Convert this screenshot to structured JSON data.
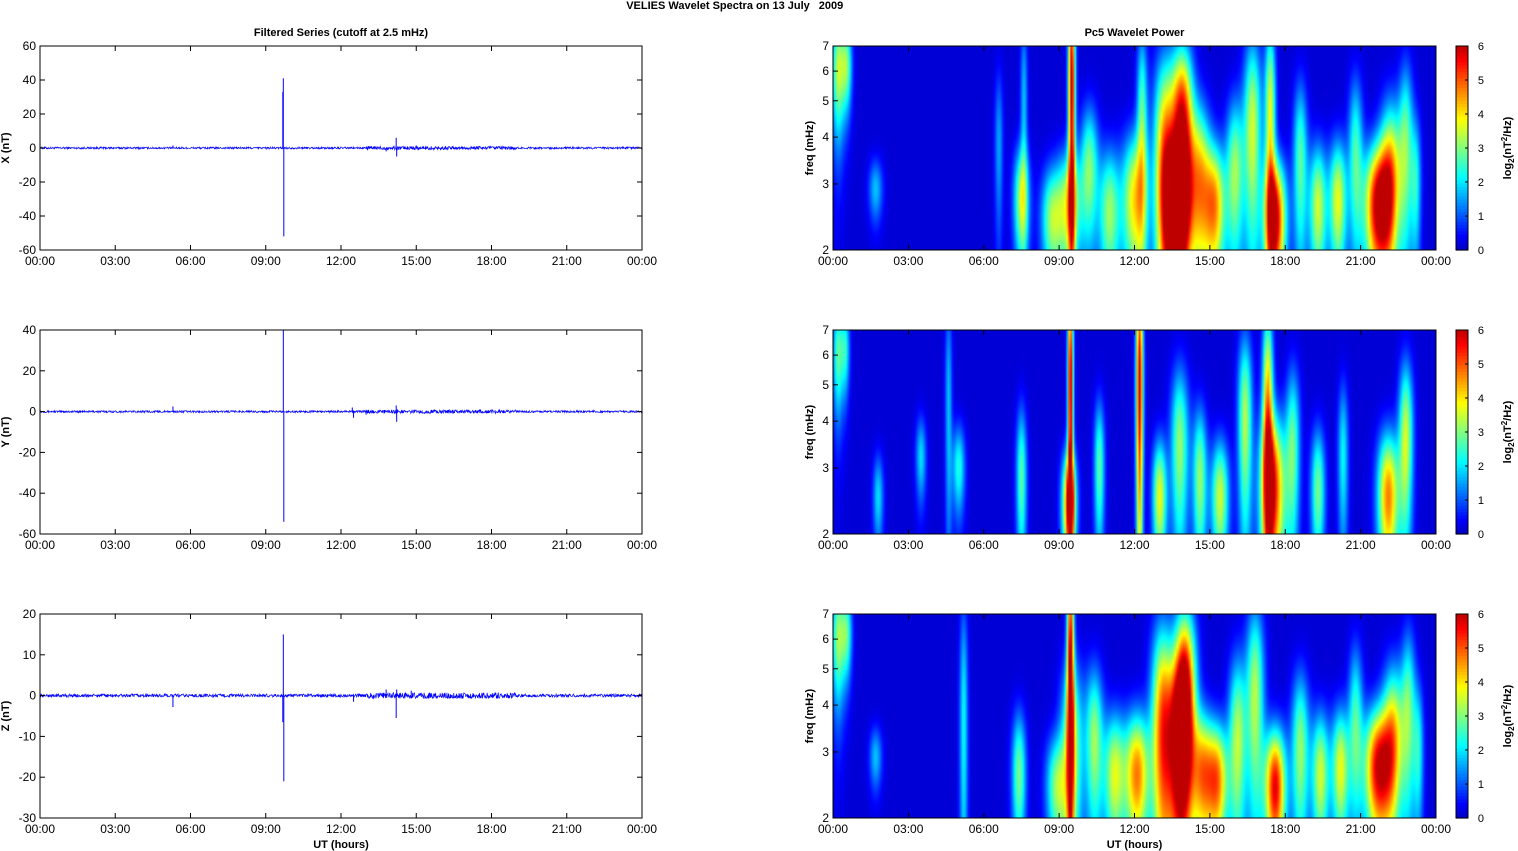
{
  "figure": {
    "title_left": "VELIES Wavelet Spectra on 13 July",
    "title_right": "2009"
  },
  "chart_data": [
    {
      "type": "line",
      "title": "Filtered Series (cutoff at 2.5 mHz)",
      "ylabel": "X (nT)",
      "xlabel": "",
      "xlim": [
        0,
        24
      ],
      "ylim": [
        -60,
        60
      ],
      "yticks": [
        "60",
        "40",
        "20",
        "0",
        "-20",
        "-40",
        "-60"
      ],
      "xticks": [
        "00:00",
        "03:00",
        "06:00",
        "09:00",
        "12:00",
        "15:00",
        "18:00",
        "21:00",
        "00:00"
      ],
      "line_color": "#0000ff",
      "baseline": 0,
      "noise_amplitude": 0.6,
      "spikes": [
        {
          "x": 9.7,
          "y": 41
        },
        {
          "x": 9.72,
          "y": -52
        },
        {
          "x": 9.68,
          "y": 33
        },
        {
          "x": 14.2,
          "y": 6
        },
        {
          "x": 14.22,
          "y": -5
        },
        {
          "x": 5.3,
          "y": 1.5
        },
        {
          "x": 13.8,
          "y": -2
        },
        {
          "x": 15.0,
          "y": 1.5
        },
        {
          "x": 17.5,
          "y": 1.2
        }
      ]
    },
    {
      "type": "line",
      "title": "",
      "ylabel": "Y (nT)",
      "xlabel": "",
      "xlim": [
        0,
        24
      ],
      "ylim": [
        -60,
        40
      ],
      "yticks": [
        "40",
        "20",
        "0",
        "-20",
        "-40",
        "-60"
      ],
      "xticks": [
        "00:00",
        "03:00",
        "06:00",
        "09:00",
        "12:00",
        "15:00",
        "18:00",
        "21:00",
        "00:00"
      ],
      "line_color": "#0000ff",
      "baseline": 0,
      "noise_amplitude": 0.5,
      "spikes": [
        {
          "x": 9.7,
          "y": 40
        },
        {
          "x": 9.72,
          "y": -54
        },
        {
          "x": 5.3,
          "y": 2.5
        },
        {
          "x": 12.5,
          "y": -3
        },
        {
          "x": 12.45,
          "y": 2
        },
        {
          "x": 14.2,
          "y": 3
        },
        {
          "x": 14.22,
          "y": -5
        },
        {
          "x": 13.0,
          "y": -1.5
        }
      ]
    },
    {
      "type": "line",
      "title": "",
      "ylabel": "Z (nT)",
      "xlabel": "UT (hours)",
      "xlim": [
        0,
        24
      ],
      "ylim": [
        -30,
        20
      ],
      "yticks": [
        "20",
        "10",
        "0",
        "-10",
        "-20",
        "-30"
      ],
      "xticks": [
        "00:00",
        "03:00",
        "06:00",
        "09:00",
        "12:00",
        "15:00",
        "18:00",
        "21:00",
        "00:00"
      ],
      "line_color": "#0000ff",
      "baseline": 0,
      "noise_amplitude": 0.4,
      "spikes": [
        {
          "x": 9.7,
          "y": 15
        },
        {
          "x": 9.72,
          "y": -21
        },
        {
          "x": 9.68,
          "y": -6.5
        },
        {
          "x": 5.3,
          "y": -2.8
        },
        {
          "x": 14.2,
          "y": -5.5
        },
        {
          "x": 14.22,
          "y": 1.5
        },
        {
          "x": 12.5,
          "y": -1.5
        },
        {
          "x": 13.8,
          "y": 1.5
        },
        {
          "x": 14.8,
          "y": 1.2
        }
      ]
    },
    {
      "type": "heatmap",
      "title": "Pc5 Wavelet Power",
      "ylabel": "freq (mHz)",
      "xlabel": "",
      "xlim": [
        0,
        24
      ],
      "ylim": [
        2,
        7
      ],
      "ytick_values": [
        2,
        3,
        4,
        5,
        6,
        7
      ],
      "yticks": [
        "2",
        "3",
        "4",
        "5",
        "6",
        "7"
      ],
      "xticks": [
        "00:00",
        "03:00",
        "06:00",
        "09:00",
        "12:00",
        "15:00",
        "18:00",
        "21:00",
        "00:00"
      ],
      "colorbar_label": "log2(nT²/Hz)",
      "colorbar_ticks": [
        "0",
        "1",
        "2",
        "3",
        "4",
        "5",
        "6"
      ],
      "clim": [
        0,
        6
      ],
      "blobs": [
        {
          "t": 0.2,
          "w": 0.18,
          "f": 6.0,
          "fw": 1.6,
          "p": 3.2
        },
        {
          "t": 0.55,
          "w": 0.15,
          "f": 6.2,
          "fw": 1.2,
          "p": 2.6
        },
        {
          "t": 1.7,
          "w": 0.2,
          "f": 2.9,
          "fw": 0.4,
          "p": 1.6
        },
        {
          "t": 6.6,
          "w": 0.12,
          "f": 3.8,
          "fw": 1.4,
          "p": 1.4
        },
        {
          "t": 7.5,
          "w": 0.22,
          "f": 2.7,
          "fw": 0.7,
          "p": 3.2
        },
        {
          "t": 7.6,
          "w": 0.1,
          "f": 5.0,
          "fw": 2.0,
          "p": 1.6
        },
        {
          "t": 8.7,
          "w": 0.3,
          "f": 2.4,
          "fw": 0.6,
          "p": 2.8
        },
        {
          "t": 9.4,
          "w": 0.35,
          "f": 2.6,
          "fw": 0.7,
          "p": 3.4
        },
        {
          "t": 9.5,
          "w": 0.1,
          "f": 5.5,
          "fw": 3.0,
          "p": 6.0
        },
        {
          "t": 10.2,
          "w": 0.25,
          "f": 3.3,
          "fw": 1.0,
          "p": 2.8
        },
        {
          "t": 11.0,
          "w": 0.3,
          "f": 2.5,
          "fw": 0.8,
          "p": 3.0
        },
        {
          "t": 12.0,
          "w": 0.35,
          "f": 2.7,
          "fw": 0.9,
          "p": 3.8
        },
        {
          "t": 12.3,
          "w": 0.15,
          "f": 4.5,
          "fw": 2.0,
          "p": 2.6
        },
        {
          "t": 13.2,
          "w": 0.3,
          "f": 3.3,
          "fw": 2.0,
          "p": 4.6
        },
        {
          "t": 13.7,
          "w": 0.35,
          "f": 2.6,
          "fw": 0.8,
          "p": 5.6
        },
        {
          "t": 13.9,
          "w": 0.3,
          "f": 4.2,
          "fw": 1.8,
          "p": 5.8
        },
        {
          "t": 14.6,
          "w": 0.3,
          "f": 3.0,
          "fw": 1.2,
          "p": 3.8
        },
        {
          "t": 15.2,
          "w": 0.3,
          "f": 2.6,
          "fw": 0.8,
          "p": 4.2
        },
        {
          "t": 16.0,
          "w": 0.25,
          "f": 3.2,
          "fw": 1.2,
          "p": 3.0
        },
        {
          "t": 16.7,
          "w": 0.25,
          "f": 4.2,
          "fw": 2.0,
          "p": 3.4
        },
        {
          "t": 17.6,
          "w": 0.3,
          "f": 2.4,
          "fw": 0.7,
          "p": 5.8
        },
        {
          "t": 17.4,
          "w": 0.15,
          "f": 4.5,
          "fw": 2.2,
          "p": 3.6
        },
        {
          "t": 18.6,
          "w": 0.2,
          "f": 3.4,
          "fw": 1.4,
          "p": 2.6
        },
        {
          "t": 19.3,
          "w": 0.25,
          "f": 2.6,
          "fw": 0.8,
          "p": 3.4
        },
        {
          "t": 20.1,
          "w": 0.25,
          "f": 2.7,
          "fw": 0.8,
          "p": 3.6
        },
        {
          "t": 20.8,
          "w": 0.2,
          "f": 3.6,
          "fw": 1.4,
          "p": 2.4
        },
        {
          "t": 21.7,
          "w": 0.4,
          "f": 2.6,
          "fw": 0.8,
          "p": 5.8
        },
        {
          "t": 22.2,
          "w": 0.3,
          "f": 3.2,
          "fw": 1.2,
          "p": 3.6
        },
        {
          "t": 22.8,
          "w": 0.2,
          "f": 3.8,
          "fw": 1.6,
          "p": 2.6
        },
        {
          "t": 23.2,
          "w": 0.15,
          "f": 3.0,
          "fw": 1.0,
          "p": 2.0
        }
      ]
    },
    {
      "type": "heatmap",
      "title": "",
      "ylabel": "freq (mHz)",
      "xlabel": "",
      "xlim": [
        0,
        24
      ],
      "ylim": [
        2,
        7
      ],
      "ytick_values": [
        2,
        3,
        4,
        5,
        6,
        7
      ],
      "yticks": [
        "2",
        "3",
        "4",
        "5",
        "6",
        "7"
      ],
      "xticks": [
        "00:00",
        "03:00",
        "06:00",
        "09:00",
        "12:00",
        "15:00",
        "18:00",
        "21:00",
        "00:00"
      ],
      "colorbar_label": "log2(nT²/Hz)",
      "colorbar_ticks": [
        "0",
        "1",
        "2",
        "3",
        "4",
        "5",
        "6"
      ],
      "clim": [
        0,
        6
      ],
      "blobs": [
        {
          "t": 0.2,
          "w": 0.15,
          "f": 6.0,
          "fw": 1.5,
          "p": 2.6
        },
        {
          "t": 0.5,
          "w": 0.12,
          "f": 6.2,
          "fw": 1.2,
          "p": 2.0
        },
        {
          "t": 1.8,
          "w": 0.15,
          "f": 2.5,
          "fw": 0.5,
          "p": 1.8
        },
        {
          "t": 3.5,
          "w": 0.15,
          "f": 3.2,
          "fw": 0.6,
          "p": 1.8
        },
        {
          "t": 4.6,
          "w": 0.1,
          "f": 4.5,
          "fw": 2.5,
          "p": 1.6
        },
        {
          "t": 5.0,
          "w": 0.18,
          "f": 3.0,
          "fw": 0.6,
          "p": 2.2
        },
        {
          "t": 7.5,
          "w": 0.15,
          "f": 2.8,
          "fw": 1.0,
          "p": 2.6
        },
        {
          "t": 9.4,
          "w": 0.2,
          "f": 2.4,
          "fw": 0.6,
          "p": 5.2
        },
        {
          "t": 9.45,
          "w": 0.08,
          "f": 5.0,
          "fw": 3.0,
          "p": 6.0
        },
        {
          "t": 10.6,
          "w": 0.15,
          "f": 3.0,
          "fw": 1.0,
          "p": 2.6
        },
        {
          "t": 12.2,
          "w": 0.1,
          "f": 5.0,
          "fw": 3.0,
          "p": 6.0
        },
        {
          "t": 13.0,
          "w": 0.2,
          "f": 2.5,
          "fw": 0.7,
          "p": 3.6
        },
        {
          "t": 13.8,
          "w": 0.25,
          "f": 3.4,
          "fw": 1.4,
          "p": 3.0
        },
        {
          "t": 14.6,
          "w": 0.2,
          "f": 2.8,
          "fw": 1.0,
          "p": 3.0
        },
        {
          "t": 15.4,
          "w": 0.25,
          "f": 2.5,
          "fw": 0.7,
          "p": 3.4
        },
        {
          "t": 16.4,
          "w": 0.2,
          "f": 4.0,
          "fw": 1.8,
          "p": 3.2
        },
        {
          "t": 17.5,
          "w": 0.35,
          "f": 2.6,
          "fw": 1.0,
          "p": 5.4
        },
        {
          "t": 17.3,
          "w": 0.15,
          "f": 4.5,
          "fw": 2.2,
          "p": 4.2
        },
        {
          "t": 18.3,
          "w": 0.2,
          "f": 3.4,
          "fw": 1.4,
          "p": 2.6
        },
        {
          "t": 19.3,
          "w": 0.2,
          "f": 2.6,
          "fw": 0.8,
          "p": 2.8
        },
        {
          "t": 20.3,
          "w": 0.15,
          "f": 3.2,
          "fw": 1.2,
          "p": 2.0
        },
        {
          "t": 22.1,
          "w": 0.3,
          "f": 2.5,
          "fw": 0.8,
          "p": 4.6
        },
        {
          "t": 22.8,
          "w": 0.2,
          "f": 3.6,
          "fw": 1.4,
          "p": 3.4
        }
      ]
    },
    {
      "type": "heatmap",
      "title": "",
      "ylabel": "freq (mHz)",
      "xlabel": "UT (hours)",
      "xlim": [
        0,
        24
      ],
      "ylim": [
        2,
        7
      ],
      "ytick_values": [
        2,
        3,
        4,
        5,
        6,
        7
      ],
      "yticks": [
        "2",
        "3",
        "4",
        "5",
        "6",
        "7"
      ],
      "xticks": [
        "00:00",
        "03:00",
        "06:00",
        "09:00",
        "12:00",
        "15:00",
        "18:00",
        "21:00",
        "00:00"
      ],
      "colorbar_label": "log2(nT²/Hz)",
      "colorbar_ticks": [
        "0",
        "1",
        "2",
        "3",
        "4",
        "5",
        "6"
      ],
      "clim": [
        0,
        6
      ],
      "blobs": [
        {
          "t": 0.2,
          "w": 0.18,
          "f": 6.0,
          "fw": 1.6,
          "p": 3.0
        },
        {
          "t": 0.55,
          "w": 0.15,
          "f": 6.2,
          "fw": 1.2,
          "p": 2.4
        },
        {
          "t": 1.7,
          "w": 0.18,
          "f": 2.9,
          "fw": 0.4,
          "p": 1.6
        },
        {
          "t": 5.2,
          "w": 0.12,
          "f": 3.5,
          "fw": 2.5,
          "p": 2.0
        },
        {
          "t": 7.4,
          "w": 0.2,
          "f": 2.6,
          "fw": 0.8,
          "p": 2.8
        },
        {
          "t": 8.9,
          "w": 0.3,
          "f": 2.4,
          "fw": 0.6,
          "p": 2.8
        },
        {
          "t": 9.5,
          "w": 0.3,
          "f": 3.0,
          "fw": 1.4,
          "p": 3.4
        },
        {
          "t": 9.45,
          "w": 0.1,
          "f": 5.5,
          "fw": 3.0,
          "p": 5.6
        },
        {
          "t": 10.4,
          "w": 0.25,
          "f": 3.2,
          "fw": 1.2,
          "p": 3.0
        },
        {
          "t": 11.2,
          "w": 0.3,
          "f": 2.6,
          "fw": 0.8,
          "p": 3.4
        },
        {
          "t": 12.1,
          "w": 0.35,
          "f": 2.6,
          "fw": 0.8,
          "p": 4.6
        },
        {
          "t": 13.1,
          "w": 0.3,
          "f": 3.4,
          "fw": 2.0,
          "p": 4.6
        },
        {
          "t": 13.8,
          "w": 0.35,
          "f": 3.0,
          "fw": 1.4,
          "p": 5.2
        },
        {
          "t": 14.0,
          "w": 0.3,
          "f": 4.6,
          "fw": 1.8,
          "p": 5.0
        },
        {
          "t": 14.7,
          "w": 0.3,
          "f": 2.6,
          "fw": 0.8,
          "p": 4.0
        },
        {
          "t": 15.3,
          "w": 0.3,
          "f": 2.5,
          "fw": 0.7,
          "p": 4.4
        },
        {
          "t": 16.1,
          "w": 0.25,
          "f": 3.2,
          "fw": 1.4,
          "p": 3.2
        },
        {
          "t": 16.8,
          "w": 0.25,
          "f": 4.2,
          "fw": 2.0,
          "p": 3.2
        },
        {
          "t": 17.6,
          "w": 0.3,
          "f": 2.4,
          "fw": 0.7,
          "p": 5.6
        },
        {
          "t": 18.6,
          "w": 0.25,
          "f": 3.0,
          "fw": 1.2,
          "p": 3.0
        },
        {
          "t": 19.4,
          "w": 0.25,
          "f": 2.6,
          "fw": 0.8,
          "p": 3.4
        },
        {
          "t": 20.2,
          "w": 0.25,
          "f": 2.7,
          "fw": 0.8,
          "p": 3.6
        },
        {
          "t": 20.8,
          "w": 0.2,
          "f": 3.6,
          "fw": 1.4,
          "p": 2.4
        },
        {
          "t": 21.7,
          "w": 0.4,
          "f": 2.7,
          "fw": 0.8,
          "p": 5.6
        },
        {
          "t": 22.3,
          "w": 0.3,
          "f": 3.3,
          "fw": 1.2,
          "p": 3.6
        },
        {
          "t": 22.9,
          "w": 0.2,
          "f": 3.8,
          "fw": 1.6,
          "p": 2.6
        },
        {
          "t": 23.3,
          "w": 0.15,
          "f": 3.0,
          "fw": 1.0,
          "p": 2.0
        }
      ]
    }
  ]
}
